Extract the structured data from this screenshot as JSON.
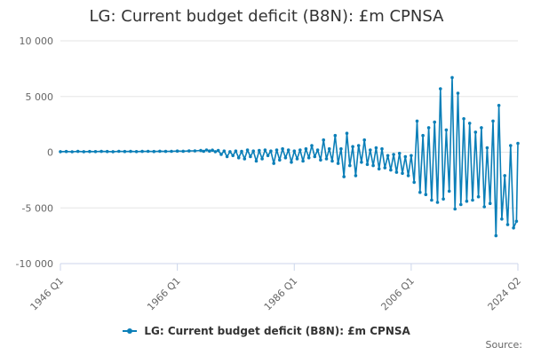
{
  "chart_data": {
    "type": "line",
    "title": "LG: Current budget deficit (B8N): £m CPNSA",
    "xlabel": "",
    "ylabel": "",
    "ylim": [
      -10000,
      10000
    ],
    "yticks": [
      {
        "value": 10000,
        "label": "10 000"
      },
      {
        "value": 5000,
        "label": "5 000"
      },
      {
        "value": 0,
        "label": "0"
      },
      {
        "value": -5000,
        "label": "-5 000"
      },
      {
        "value": -10000,
        "label": "-10 000"
      }
    ],
    "x_range": [
      1946.0,
      2024.25
    ],
    "xticks": [
      {
        "value": 1946.0,
        "label": "1946 Q1"
      },
      {
        "value": 1966.0,
        "label": "1966 Q1"
      },
      {
        "value": 1986.0,
        "label": "1986 Q1"
      },
      {
        "value": 2006.0,
        "label": "2006 Q1"
      },
      {
        "value": 2024.25,
        "label": "2024 Q2"
      }
    ],
    "series": [
      {
        "name": "LG: Current budget deficit (B8N): £m CPNSA",
        "color": "#0b7fb8",
        "points": [
          [
            1946.0,
            50
          ],
          [
            1947.0,
            60
          ],
          [
            1948.0,
            40
          ],
          [
            1949.0,
            70
          ],
          [
            1950.0,
            50
          ],
          [
            1951.0,
            60
          ],
          [
            1952.0,
            55
          ],
          [
            1953.0,
            70
          ],
          [
            1954.0,
            60
          ],
          [
            1955.0,
            50
          ],
          [
            1956.0,
            80
          ],
          [
            1957.0,
            60
          ],
          [
            1958.0,
            70
          ],
          [
            1959.0,
            55
          ],
          [
            1960.0,
            70
          ],
          [
            1961.0,
            80
          ],
          [
            1962.0,
            60
          ],
          [
            1963.0,
            90
          ],
          [
            1964.0,
            70
          ],
          [
            1965.0,
            80
          ],
          [
            1966.0,
            100
          ],
          [
            1967.0,
            90
          ],
          [
            1968.0,
            110
          ],
          [
            1969.0,
            120
          ],
          [
            1970.0,
            150
          ],
          [
            1970.5,
            80
          ],
          [
            1971.0,
            200
          ],
          [
            1971.5,
            100
          ],
          [
            1972.0,
            180
          ],
          [
            1972.5,
            50
          ],
          [
            1973.0,
            150
          ],
          [
            1973.5,
            -200
          ],
          [
            1974.0,
            100
          ],
          [
            1974.5,
            -400
          ],
          [
            1975.0,
            50
          ],
          [
            1975.5,
            -300
          ],
          [
            1976.0,
            100
          ],
          [
            1976.5,
            -500
          ],
          [
            1977.0,
            80
          ],
          [
            1977.5,
            -600
          ],
          [
            1978.0,
            200
          ],
          [
            1978.5,
            -400
          ],
          [
            1979.0,
            100
          ],
          [
            1979.5,
            -800
          ],
          [
            1980.0,
            150
          ],
          [
            1980.5,
            -600
          ],
          [
            1981.0,
            200
          ],
          [
            1981.5,
            -300
          ],
          [
            1982.0,
            100
          ],
          [
            1982.5,
            -1000
          ],
          [
            1983.0,
            200
          ],
          [
            1983.5,
            -700
          ],
          [
            1984.0,
            300
          ],
          [
            1984.5,
            -500
          ],
          [
            1985.0,
            200
          ],
          [
            1985.5,
            -900
          ],
          [
            1986.0,
            100
          ],
          [
            1986.5,
            -600
          ],
          [
            1987.0,
            200
          ],
          [
            1987.5,
            -800
          ],
          [
            1988.0,
            300
          ],
          [
            1988.5,
            -500
          ],
          [
            1989.0,
            600
          ],
          [
            1989.5,
            -400
          ],
          [
            1990.0,
            200
          ],
          [
            1990.5,
            -700
          ],
          [
            1991.0,
            1100
          ],
          [
            1991.5,
            -600
          ],
          [
            1992.0,
            300
          ],
          [
            1992.5,
            -800
          ],
          [
            1993.0,
            1500
          ],
          [
            1993.5,
            -1000
          ],
          [
            1994.0,
            300
          ],
          [
            1994.5,
            -2200
          ],
          [
            1995.0,
            1700
          ],
          [
            1995.5,
            -1200
          ],
          [
            1996.0,
            500
          ],
          [
            1996.5,
            -2100
          ],
          [
            1997.0,
            600
          ],
          [
            1997.5,
            -900
          ],
          [
            1998.0,
            1100
          ],
          [
            1998.5,
            -1100
          ],
          [
            1999.0,
            200
          ],
          [
            1999.5,
            -1200
          ],
          [
            2000.0,
            400
          ],
          [
            2000.5,
            -1500
          ],
          [
            2001.0,
            300
          ],
          [
            2001.5,
            -1400
          ],
          [
            2002.0,
            -300
          ],
          [
            2002.5,
            -1600
          ],
          [
            2003.0,
            -200
          ],
          [
            2003.5,
            -1800
          ],
          [
            2004.0,
            -100
          ],
          [
            2004.5,
            -1900
          ],
          [
            2005.0,
            -400
          ],
          [
            2005.5,
            -2100
          ],
          [
            2006.0,
            -300
          ],
          [
            2006.5,
            -2700
          ],
          [
            2007.0,
            2800
          ],
          [
            2007.5,
            -3600
          ],
          [
            2008.0,
            1500
          ],
          [
            2008.5,
            -3800
          ],
          [
            2009.0,
            2200
          ],
          [
            2009.5,
            -4300
          ],
          [
            2010.0,
            2700
          ],
          [
            2010.5,
            -4500
          ],
          [
            2011.0,
            5700
          ],
          [
            2011.5,
            -4200
          ],
          [
            2012.0,
            2000
          ],
          [
            2012.5,
            -3500
          ],
          [
            2013.0,
            6700
          ],
          [
            2013.5,
            -5100
          ],
          [
            2014.0,
            5300
          ],
          [
            2014.5,
            -4700
          ],
          [
            2015.0,
            3000
          ],
          [
            2015.5,
            -4400
          ],
          [
            2016.0,
            2600
          ],
          [
            2016.5,
            -4300
          ],
          [
            2017.0,
            1800
          ],
          [
            2017.5,
            -4000
          ],
          [
            2018.0,
            2200
          ],
          [
            2018.5,
            -4900
          ],
          [
            2019.0,
            400
          ],
          [
            2019.5,
            -4600
          ],
          [
            2020.0,
            2800
          ],
          [
            2020.5,
            -7500
          ],
          [
            2021.0,
            4200
          ],
          [
            2021.5,
            -6000
          ],
          [
            2022.0,
            -2100
          ],
          [
            2022.5,
            -6500
          ],
          [
            2023.0,
            600
          ],
          [
            2023.5,
            -6800
          ],
          [
            2024.0,
            -6200
          ],
          [
            2024.25,
            800
          ]
        ]
      }
    ],
    "legend": "bottom-center",
    "credit": "Source:"
  }
}
